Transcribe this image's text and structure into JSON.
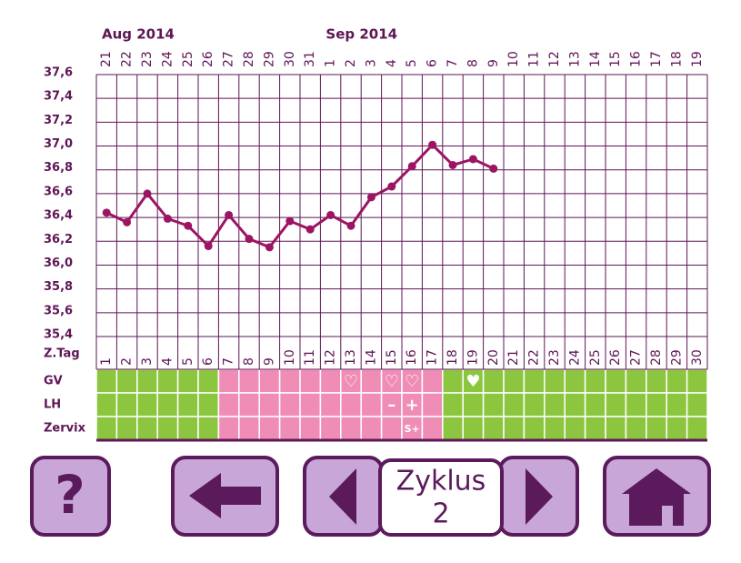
{
  "chart_data": {
    "type": "line",
    "months": [
      {
        "label": "Aug 2014",
        "days": [
          "21",
          "22",
          "23",
          "24",
          "25",
          "26",
          "27",
          "28",
          "29",
          "30",
          "31"
        ]
      },
      {
        "label": "Sep 2014",
        "days": [
          "1",
          "2",
          "3",
          "4",
          "5",
          "6",
          "7",
          "8",
          "9",
          "10",
          "11",
          "12",
          "13",
          "14",
          "15",
          "16",
          "17",
          "18",
          "19"
        ]
      }
    ],
    "cycle_day_label": "Z.Tag",
    "categories": [
      "1",
      "2",
      "3",
      "4",
      "5",
      "6",
      "7",
      "8",
      "9",
      "10",
      "11",
      "12",
      "13",
      "14",
      "15",
      "16",
      "17",
      "18",
      "19",
      "20",
      "21",
      "22",
      "23",
      "24",
      "25",
      "26",
      "27",
      "28",
      "29",
      "30"
    ],
    "values": [
      36.44,
      36.36,
      36.6,
      36.39,
      36.33,
      36.16,
      36.42,
      36.22,
      36.15,
      36.37,
      36.3,
      36.42,
      36.33,
      36.57,
      36.66,
      36.83,
      37.01,
      36.84,
      36.89,
      36.81,
      null,
      null,
      null,
      null,
      null,
      null,
      null,
      null,
      null,
      null
    ],
    "color": "#9c1463",
    "ylim": [
      35.4,
      37.6
    ],
    "yticks": [
      {
        "value": 35.4,
        "label": "35,4"
      },
      {
        "value": 35.6,
        "label": "35,6"
      },
      {
        "value": 35.8,
        "label": "35,8"
      },
      {
        "value": 36.0,
        "label": "36,0"
      },
      {
        "value": 36.2,
        "label": "36,2"
      },
      {
        "value": 36.4,
        "label": "36,4"
      },
      {
        "value": 36.6,
        "label": "36,6"
      },
      {
        "value": 36.8,
        "label": "36,8"
      },
      {
        "value": 37.0,
        "label": "37,0"
      },
      {
        "value": 37.2,
        "label": "37,2"
      },
      {
        "value": 37.4,
        "label": "37,4"
      },
      {
        "value": 37.6,
        "label": "37,6"
      }
    ],
    "grid": true,
    "day_colors": [
      "#8cc63e",
      "#8cc63e",
      "#8cc63e",
      "#8cc63e",
      "#8cc63e",
      "#8cc63e",
      "#f08db7",
      "#f08db7",
      "#f08db7",
      "#f08db7",
      "#f08db7",
      "#f08db7",
      "#f08db7",
      "#f08db7",
      "#f08db7",
      "#f08db7",
      "#f08db7",
      "#8cc63e",
      "#8cc63e",
      "#8cc63e",
      "#8cc63e",
      "#8cc63e",
      "#8cc63e",
      "#8cc63e",
      "#8cc63e",
      "#8cc63e",
      "#8cc63e",
      "#8cc63e",
      "#8cc63e",
      "#8cc63e"
    ],
    "rows": [
      {
        "label": "GV",
        "entries": [
          null,
          null,
          null,
          null,
          null,
          null,
          null,
          null,
          null,
          null,
          null,
          null,
          "♡",
          null,
          "♡",
          "♡",
          null,
          null,
          "♥",
          null,
          null,
          null,
          null,
          null,
          null,
          null,
          null,
          null,
          null,
          null
        ]
      },
      {
        "label": "LH",
        "entries": [
          null,
          null,
          null,
          null,
          null,
          null,
          null,
          null,
          null,
          null,
          null,
          null,
          null,
          null,
          "–",
          "+",
          null,
          null,
          null,
          null,
          null,
          null,
          null,
          null,
          null,
          null,
          null,
          null,
          null,
          null
        ]
      },
      {
        "label": "Zervix",
        "entries": [
          null,
          null,
          null,
          null,
          null,
          null,
          null,
          null,
          null,
          null,
          null,
          null,
          null,
          null,
          null,
          "S+",
          null,
          null,
          null,
          null,
          null,
          null,
          null,
          null,
          null,
          null,
          null,
          null,
          null,
          null
        ]
      }
    ]
  },
  "buttons": {
    "help": "?",
    "cycle_label": "Zyklus",
    "cycle_number": "2"
  }
}
